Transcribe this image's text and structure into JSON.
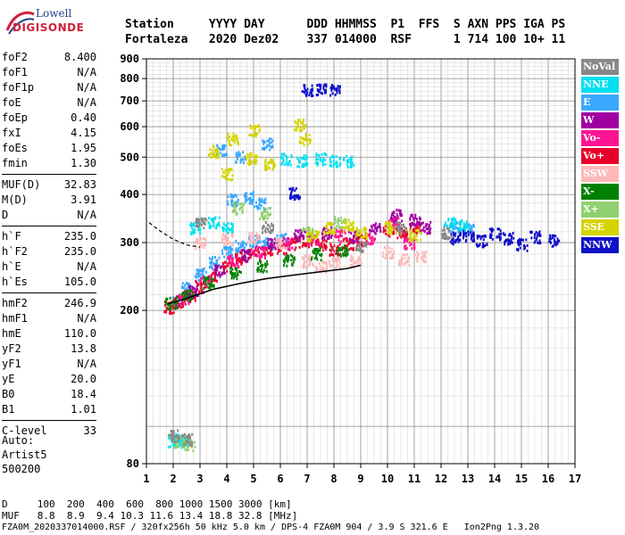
{
  "logo": {
    "line1": "Lowell",
    "line2": "DIGISONDE"
  },
  "header": {
    "labels": [
      "Station",
      "YYYY",
      "DAY",
      "DDD",
      "HHMMSS",
      "P1",
      "FFS",
      "S",
      "AXN",
      "PPS",
      "IGA",
      "PS"
    ],
    "values": [
      "Fortaleza",
      "2020",
      "Dez02",
      "337",
      "014000",
      "RSF",
      "",
      "1",
      "714",
      "100",
      "10+",
      "11"
    ]
  },
  "params": [
    [
      {
        "n": "foF2",
        "v": "8.400"
      },
      {
        "n": "foF1",
        "v": "N/A"
      },
      {
        "n": "foF1p",
        "v": "N/A"
      },
      {
        "n": "foE",
        "v": "N/A"
      },
      {
        "n": "foEp",
        "v": "0.40"
      },
      {
        "n": "fxI",
        "v": "4.15"
      },
      {
        "n": "foEs",
        "v": "1.95"
      },
      {
        "n": "fmin",
        "v": "1.30"
      }
    ],
    [
      {
        "n": "MUF(D)",
        "v": "32.83"
      },
      {
        "n": "M(D)",
        "v": "3.91"
      },
      {
        "n": "D",
        "v": "N/A"
      }
    ],
    [
      {
        "n": "h`F",
        "v": "235.0"
      },
      {
        "n": "h`F2",
        "v": "235.0"
      },
      {
        "n": "h`E",
        "v": "N/A"
      },
      {
        "n": "h`Es",
        "v": "105.0"
      }
    ],
    [
      {
        "n": "hmF2",
        "v": "246.9"
      },
      {
        "n": "hmF1",
        "v": "N/A"
      },
      {
        "n": "hmE",
        "v": "110.0"
      },
      {
        "n": "yF2",
        "v": "13.8"
      },
      {
        "n": "yF1",
        "v": "N/A"
      },
      {
        "n": "yE",
        "v": "20.0"
      },
      {
        "n": "B0",
        "v": "18.4"
      },
      {
        "n": "B1",
        "v": "1.01"
      }
    ],
    [
      {
        "n": "C-level",
        "v": "33"
      }
    ]
  ],
  "autoscale": {
    "line1": "Auto:",
    "line2": "Artist5",
    "line3": "500200"
  },
  "legend": [
    {
      "label": "NoVal",
      "color": "#888888"
    },
    {
      "label": "NNE",
      "color": "#00e0f0"
    },
    {
      "label": "E",
      "color": "#3aa8ff"
    },
    {
      "label": "W",
      "color": "#a000a0"
    },
    {
      "label": "Vo-",
      "color": "#ff1493"
    },
    {
      "label": "Vo+",
      "color": "#e8002a"
    },
    {
      "label": "SSW",
      "color": "#ffb8b8"
    },
    {
      "label": "X-",
      "color": "#008000"
    },
    {
      "label": "X+",
      "color": "#90d070"
    },
    {
      "label": "SSE",
      "color": "#d4d400"
    },
    {
      "label": "NNW",
      "color": "#1010c8"
    }
  ],
  "footer": {
    "d_label": "D",
    "d_values": [
      "100",
      "200",
      "400",
      "600",
      "800",
      "1000",
      "1500",
      "3000"
    ],
    "d_unit": "[km]",
    "muf_label": "MUF",
    "muf_values": [
      "8.8",
      "8.9",
      "9.4",
      "10.3",
      "11.6",
      "13.4",
      "18.8",
      "32.8"
    ],
    "muf_unit": "[MHz]",
    "info": "FZA0M_2020337014000.RSF / 320fx256h 50 kHz 5.0 km / DPS-4 FZA0M 904 / 3.9 S 321.6 E   Ion2Png 1.3.20"
  },
  "chart_data": {
    "type": "scatter",
    "title": "",
    "xlabel": "",
    "ylabel": "",
    "xlim": [
      1,
      17
    ],
    "ylim": [
      80,
      900
    ],
    "y_scale": "log",
    "xticks": [
      1,
      2,
      3,
      4,
      5,
      6,
      7,
      8,
      9,
      10,
      11,
      12,
      13,
      14,
      15,
      16,
      17
    ],
    "yticks": [
      80,
      200,
      300,
      400,
      500,
      600,
      700,
      800,
      900
    ],
    "grid": true,
    "series": [
      {
        "name": "E",
        "color": "#3aa8ff",
        "points": [
          [
            2.1,
            212
          ],
          [
            2.5,
            230
          ],
          [
            3.0,
            250
          ],
          [
            3.5,
            268
          ],
          [
            4.0,
            285
          ],
          [
            4.5,
            295
          ],
          [
            5.0,
            305
          ],
          [
            5.5,
            300
          ],
          [
            6.0,
            308
          ],
          [
            4.2,
            390
          ],
          [
            4.8,
            395
          ],
          [
            5.2,
            380
          ],
          [
            12.5,
            332
          ],
          [
            13.0,
            328
          ],
          [
            3.8,
            525
          ],
          [
            4.5,
            505
          ],
          [
            5.5,
            545
          ]
        ]
      },
      {
        "name": "NNE",
        "color": "#00e0f0",
        "points": [
          [
            2.0,
            92
          ],
          [
            2.2,
            93
          ],
          [
            2.4,
            92
          ],
          [
            3.5,
            340
          ],
          [
            4.0,
            330
          ],
          [
            6.2,
            498
          ],
          [
            6.8,
            492
          ],
          [
            7.5,
            498
          ],
          [
            8.0,
            490
          ],
          [
            8.5,
            492
          ],
          [
            12.3,
            340
          ],
          [
            12.8,
            335
          ],
          [
            2.8,
            330
          ]
        ]
      },
      {
        "name": "Vo+",
        "color": "#e8002a",
        "points": [
          [
            1.8,
            205
          ],
          [
            2.2,
            212
          ],
          [
            2.6,
            220
          ],
          [
            3.0,
            232
          ],
          [
            3.5,
            245
          ],
          [
            4.0,
            262
          ],
          [
            4.5,
            275
          ],
          [
            5.0,
            282
          ],
          [
            5.5,
            290
          ],
          [
            6.0,
            292
          ],
          [
            6.5,
            300
          ],
          [
            7.0,
            305
          ],
          [
            7.5,
            298
          ],
          [
            8.0,
            290
          ],
          [
            8.5,
            300
          ],
          [
            9.0,
            305
          ],
          [
            10.0,
            325
          ],
          [
            10.5,
            320
          ],
          [
            11.0,
            330
          ]
        ]
      },
      {
        "name": "Vo-",
        "color": "#ff1493",
        "points": [
          [
            2.4,
            215
          ],
          [
            3.2,
            240
          ],
          [
            4.2,
            270
          ],
          [
            5.2,
            285
          ],
          [
            6.2,
            300
          ],
          [
            7.2,
            310
          ],
          [
            8.2,
            315
          ],
          [
            9.3,
            310
          ],
          [
            10.2,
            340
          ],
          [
            10.8,
            300
          ]
        ]
      },
      {
        "name": "W",
        "color": "#a000a0",
        "points": [
          [
            2.7,
            225
          ],
          [
            3.7,
            255
          ],
          [
            4.7,
            280
          ],
          [
            5.7,
            300
          ],
          [
            6.7,
            315
          ],
          [
            7.7,
            320
          ],
          [
            8.7,
            312
          ],
          [
            10.3,
            355
          ],
          [
            11.0,
            345
          ],
          [
            11.4,
            330
          ],
          [
            9.5,
            330
          ]
        ]
      },
      {
        "name": "SSW",
        "color": "#ffb8b8",
        "points": [
          [
            3.0,
            300
          ],
          [
            4.0,
            308
          ],
          [
            5.0,
            312
          ],
          [
            6.0,
            300
          ],
          [
            7.0,
            270
          ],
          [
            7.5,
            262
          ],
          [
            8.0,
            268
          ],
          [
            8.8,
            270
          ],
          [
            10.0,
            285
          ],
          [
            10.6,
            272
          ],
          [
            11.2,
            278
          ]
        ]
      },
      {
        "name": "X-",
        "color": "#008000",
        "points": [
          [
            1.9,
            210
          ],
          [
            2.5,
            222
          ],
          [
            3.3,
            238
          ],
          [
            4.3,
            252
          ],
          [
            5.3,
            262
          ],
          [
            6.3,
            272
          ],
          [
            7.3,
            282
          ],
          [
            8.3,
            288
          ]
        ]
      },
      {
        "name": "X+",
        "color": "#90d070",
        "points": [
          [
            2.2,
            92
          ],
          [
            2.6,
            90
          ],
          [
            4.4,
            370
          ],
          [
            5.4,
            360
          ],
          [
            7.0,
            320
          ],
          [
            8.2,
            340
          ]
        ]
      },
      {
        "name": "SSE",
        "color": "#d4d400",
        "points": [
          [
            3.5,
            520
          ],
          [
            4.2,
            560
          ],
          [
            4.9,
            500
          ],
          [
            5.6,
            480
          ],
          [
            4.0,
            455
          ],
          [
            5.0,
            590
          ],
          [
            7.2,
            315
          ],
          [
            7.8,
            328
          ],
          [
            8.5,
            335
          ],
          [
            9.0,
            320
          ],
          [
            10.1,
            330
          ],
          [
            11.0,
            315
          ],
          [
            6.7,
            610
          ],
          [
            6.9,
            560
          ]
        ]
      },
      {
        "name": "NNW",
        "color": "#1010c8",
        "points": [
          [
            7.0,
            750
          ],
          [
            7.5,
            752
          ],
          [
            8.0,
            755
          ],
          [
            12.5,
            310
          ],
          [
            13.0,
            315
          ],
          [
            13.5,
            305
          ],
          [
            14.0,
            318
          ],
          [
            14.5,
            310
          ],
          [
            15.0,
            298
          ],
          [
            15.5,
            312
          ],
          [
            16.2,
            305
          ],
          [
            6.5,
            405
          ]
        ]
      },
      {
        "name": "NoVal",
        "color": "#888888",
        "points": [
          [
            2.0,
            95
          ],
          [
            2.5,
            93
          ],
          [
            3.0,
            340
          ],
          [
            5.5,
            330
          ],
          [
            10.5,
            330
          ],
          [
            12.2,
            320
          ],
          [
            9.0,
            295
          ]
        ]
      }
    ],
    "profile_curve": {
      "color": "#000000",
      "points": [
        [
          1.8,
          208
        ],
        [
          2.5,
          215
        ],
        [
          3.5,
          227
        ],
        [
          4.5,
          235
        ],
        [
          5.5,
          242
        ],
        [
          6.5,
          247
        ],
        [
          7.5,
          252
        ],
        [
          8.5,
          257
        ],
        [
          9.0,
          262
        ]
      ]
    },
    "dashed_curve": {
      "color": "#000000",
      "points": [
        [
          1.1,
          338
        ],
        [
          1.5,
          322
        ],
        [
          2.0,
          306
        ],
        [
          2.5,
          296
        ],
        [
          3.0,
          292
        ]
      ]
    }
  }
}
